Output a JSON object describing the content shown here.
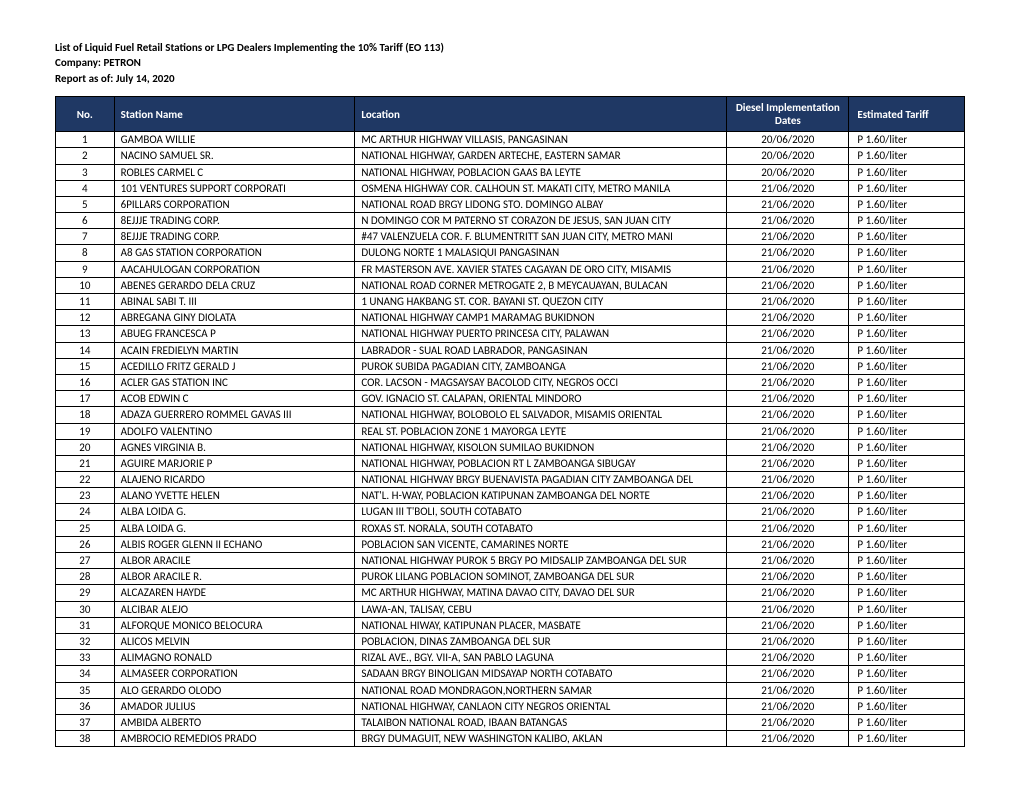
{
  "header": {
    "title_line": "List of Liquid Fuel Retail Stations or LPG Dealers Implementing the 10% Tariff (EO 113)",
    "company_line": "Company:   PETRON",
    "report_line": "Report as of:   July 14, 2020"
  },
  "table": {
    "columns": {
      "no": "No.",
      "station": "Station Name",
      "location": "Location",
      "dates": "Diesel Implementation Dates",
      "tariff": "Estimated Tariff"
    },
    "rows": [
      {
        "no": "1",
        "station": "GAMBOA WILLIE",
        "location": "MC ARTHUR HIGHWAY VILLASIS, PANGASINAN",
        "date": "20/06/2020",
        "tariff": "P 1.60/liter"
      },
      {
        "no": "2",
        "station": "NACINO SAMUEL SR.",
        "location": "NATIONAL HIGHWAY, GARDEN ARTECHE, EASTERN SAMAR",
        "date": "20/06/2020",
        "tariff": "P 1.60/liter"
      },
      {
        "no": "3",
        "station": "ROBLES CARMEL C",
        "location": "NATIONAL HIGHWAY, POBLACION GAAS BA LEYTE",
        "date": "20/06/2020",
        "tariff": "P 1.60/liter"
      },
      {
        "no": "4",
        "station": "101 VENTURES SUPPORT CORPORATI",
        "location": "OSMENA HIGHWAY COR. CALHOUN ST. MAKATI CITY, METRO MANILA",
        "date": "21/06/2020",
        "tariff": "P 1.60/liter"
      },
      {
        "no": "5",
        "station": "6PILLARS CORPORATION",
        "location": "NATIONAL ROAD BRGY LIDONG STO. DOMINGO ALBAY",
        "date": "21/06/2020",
        "tariff": "P 1.60/liter"
      },
      {
        "no": "6",
        "station": "8EJJJE TRADING CORP.",
        "location": "N DOMINGO COR M PATERNO ST CORAZON DE JESUS, SAN JUAN CITY",
        "date": "21/06/2020",
        "tariff": "P 1.60/liter"
      },
      {
        "no": "7",
        "station": "8EJJJE TRADING CORP.",
        "location": "#47 VALENZUELA COR. F. BLUMENTRITT SAN JUAN CITY, METRO MANI",
        "date": "21/06/2020",
        "tariff": "P 1.60/liter"
      },
      {
        "no": "8",
        "station": "A8 GAS STATION CORPORATION",
        "location": "DULONG NORTE 1 MALASIQUI PANGASINAN",
        "date": "21/06/2020",
        "tariff": "P 1.60/liter"
      },
      {
        "no": "9",
        "station": "AACAHULOGAN CORPORATION",
        "location": "FR MASTERSON AVE. XAVIER STATES CAGAYAN DE ORO CITY, MISAMIS",
        "date": "21/06/2020",
        "tariff": "P 1.60/liter"
      },
      {
        "no": "10",
        "station": "ABENES GERARDO DELA CRUZ",
        "location": "NATIONAL ROAD CORNER METROGATE 2, B MEYCAUAYAN, BULACAN",
        "date": "21/06/2020",
        "tariff": "P 1.60/liter"
      },
      {
        "no": "11",
        "station": "ABINAL SABI T. III",
        "location": "1 UNANG HAKBANG ST. COR. BAYANI ST. QUEZON CITY",
        "date": "21/06/2020",
        "tariff": "P 1.60/liter"
      },
      {
        "no": "12",
        "station": "ABREGANA GINY DIOLATA",
        "location": "NATIONAL HIGHWAY CAMP1 MARAMAG BUKIDNON",
        "date": "21/06/2020",
        "tariff": "P 1.60/liter"
      },
      {
        "no": "13",
        "station": "ABUEG FRANCESCA P",
        "location": "NATIONAL HIGHWAY PUERTO PRINCESA CITY, PALAWAN",
        "date": "21/06/2020",
        "tariff": "P 1.60/liter"
      },
      {
        "no": "14",
        "station": "ACAIN FREDIELYN MARTIN",
        "location": "LABRADOR - SUAL ROAD LABRADOR, PANGASINAN",
        "date": "21/06/2020",
        "tariff": "P 1.60/liter"
      },
      {
        "no": "15",
        "station": "ACEDILLO FRITZ GERALD J",
        "location": "PUROK SUBIDA PAGADIAN CITY, ZAMBOANGA",
        "date": "21/06/2020",
        "tariff": "P 1.60/liter"
      },
      {
        "no": "16",
        "station": "ACLER GAS STATION INC",
        "location": "COR. LACSON - MAGSAYSAY BACOLOD CITY, NEGROS OCCI",
        "date": "21/06/2020",
        "tariff": "P 1.60/liter"
      },
      {
        "no": "17",
        "station": "ACOB EDWIN C",
        "location": "GOV. IGNACIO ST. CALAPAN, ORIENTAL MINDORO",
        "date": "21/06/2020",
        "tariff": "P 1.60/liter"
      },
      {
        "no": "18",
        "station": "ADAZA GUERRERO ROMMEL GAVAS III",
        "location": "NATIONAL HIGHWAY, BOLOBOLO EL SALVADOR, MISAMIS ORIENTAL",
        "date": "21/06/2020",
        "tariff": "P 1.60/liter"
      },
      {
        "no": "19",
        "station": "ADOLFO VALENTINO",
        "location": "REAL ST. POBLACION ZONE 1 MAYORGA LEYTE",
        "date": "21/06/2020",
        "tariff": "P 1.60/liter"
      },
      {
        "no": "20",
        "station": "AGNES VIRGINIA B.",
        "location": "NATIONAL HIGHWAY, KISOLON SUMILAO BUKIDNON",
        "date": "21/06/2020",
        "tariff": "P 1.60/liter"
      },
      {
        "no": "21",
        "station": "AGUIRE MARJORIE P",
        "location": "NATIONAL HIGHWAY, POBLACION RT L ZAMBOANGA SIBUGAY",
        "date": "21/06/2020",
        "tariff": "P 1.60/liter"
      },
      {
        "no": "22",
        "station": "ALAJENO RICARDO",
        "location": "NATIONAL HIGHWAY BRGY BUENAVISTA PAGADIAN CITY ZAMBOANGA DEL",
        "date": "21/06/2020",
        "tariff": "P 1.60/liter"
      },
      {
        "no": "23",
        "station": "ALANO YVETTE HELEN",
        "location": "NAT'L. H-WAY, POBLACION KATIPUNAN ZAMBOANGA DEL NORTE",
        "date": "21/06/2020",
        "tariff": "P 1.60/liter"
      },
      {
        "no": "24",
        "station": "ALBA LOIDA G.",
        "location": "LUGAN III T'BOLI, SOUTH COTABATO",
        "date": "21/06/2020",
        "tariff": "P 1.60/liter"
      },
      {
        "no": "25",
        "station": "ALBA LOIDA G.",
        "location": "ROXAS ST. NORALA, SOUTH COTABATO",
        "date": "21/06/2020",
        "tariff": "P 1.60/liter"
      },
      {
        "no": "26",
        "station": "ALBIS ROGER GLENN II ECHANO",
        "location": "POBLACION SAN VICENTE, CAMARINES NORTE",
        "date": "21/06/2020",
        "tariff": "P 1.60/liter"
      },
      {
        "no": "27",
        "station": "ALBOR ARACILE",
        "location": "NATIONAL HIGHWAY PUROK 5 BRGY PO MIDSALIP ZAMBOANGA DEL SUR",
        "date": "21/06/2020",
        "tariff": "P 1.60/liter"
      },
      {
        "no": "28",
        "station": "ALBOR ARACILE R.",
        "location": "PUROK LILANG POBLACION SOMINOT, ZAMBOANGA DEL SUR",
        "date": "21/06/2020",
        "tariff": "P 1.60/liter"
      },
      {
        "no": "29",
        "station": "ALCAZAREN HAYDE",
        "location": "MC ARTHUR HIGHWAY, MATINA DAVAO CITY, DAVAO DEL SUR",
        "date": "21/06/2020",
        "tariff": "P 1.60/liter"
      },
      {
        "no": "30",
        "station": "ALCIBAR  ALEJO",
        "location": "LAWA-AN, TALISAY, CEBU",
        "date": "21/06/2020",
        "tariff": "P 1.60/liter"
      },
      {
        "no": "31",
        "station": "ALFORQUE MONICO BELOCURA",
        "location": "NATIONAL HIWAY, KATIPUNAN PLACER, MASBATE",
        "date": "21/06/2020",
        "tariff": "P 1.60/liter"
      },
      {
        "no": "32",
        "station": "ALICOS MELVIN",
        "location": "POBLACION, DINAS ZAMBOANGA DEL SUR",
        "date": "21/06/2020",
        "tariff": "P 1.60/liter"
      },
      {
        "no": "33",
        "station": "ALIMAGNO RONALD",
        "location": "RIZAL AVE., BGY. VII-A, SAN PABLO LAGUNA",
        "date": "21/06/2020",
        "tariff": "P 1.60/liter"
      },
      {
        "no": "34",
        "station": "ALMASEER CORPORATION",
        "location": "SADAAN BRGY BINOLIGAN MIDSAYAP NORTH COTABATO",
        "date": "21/06/2020",
        "tariff": "P 1.60/liter"
      },
      {
        "no": "35",
        "station": "ALO GERARDO OLODO",
        "location": "NATIONAL ROAD MONDRAGON,NORTHERN SAMAR",
        "date": "21/06/2020",
        "tariff": "P 1.60/liter"
      },
      {
        "no": "36",
        "station": "AMADOR JULIUS",
        "location": "NATIONAL HIGHWAY, CANLAON CITY NEGROS ORIENTAL",
        "date": "21/06/2020",
        "tariff": "P 1.60/liter"
      },
      {
        "no": "37",
        "station": "AMBIDA ALBERTO",
        "location": "TALAIBON NATIONAL ROAD, IBAAN BATANGAS",
        "date": "21/06/2020",
        "tariff": "P 1.60/liter"
      },
      {
        "no": "38",
        "station": "AMBROCIO REMEDIOS PRADO",
        "location": "BRGY DUMAGUIT, NEW WASHINGTON KALIBO, AKLAN",
        "date": "21/06/2020",
        "tariff": "P 1.60/liter"
      }
    ]
  }
}
